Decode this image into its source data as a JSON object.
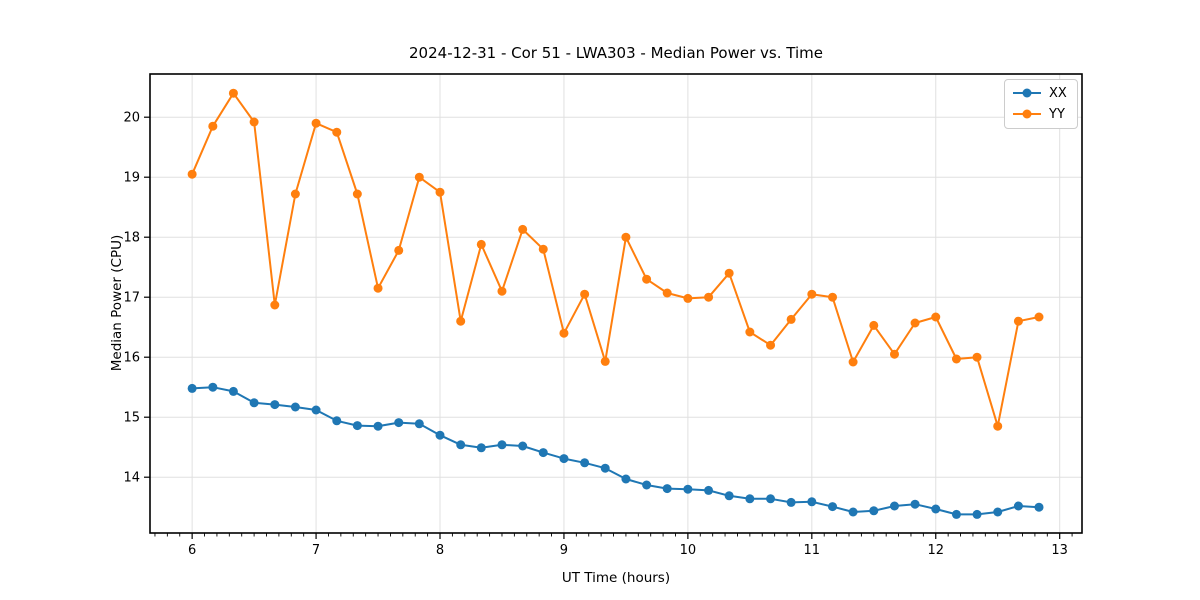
{
  "chart_data": {
    "type": "line",
    "title": "2024-12-31 - Cor 51 - LWA303 - Median Power vs. Time",
    "xlabel": "UT Time (hours)",
    "ylabel": "Median Power (CPU)",
    "xlim": [
      5.66,
      13.18
    ],
    "ylim": [
      13.07,
      20.72
    ],
    "xticks": [
      6,
      7,
      8,
      9,
      10,
      11,
      12,
      13
    ],
    "yticks": [
      14,
      15,
      16,
      17,
      18,
      19,
      20
    ],
    "x_minor_tick_step": 0.1,
    "grid": true,
    "legend_position": "upper right",
    "x": [
      6.0,
      6.167,
      6.333,
      6.5,
      6.667,
      6.833,
      7.0,
      7.167,
      7.333,
      7.5,
      7.667,
      7.833,
      8.0,
      8.167,
      8.333,
      8.5,
      8.667,
      8.833,
      9.0,
      9.167,
      9.333,
      9.5,
      9.667,
      9.833,
      10.0,
      10.167,
      10.333,
      10.5,
      10.667,
      10.833,
      11.0,
      11.167,
      11.333,
      11.5,
      11.667,
      11.833,
      12.0,
      12.167,
      12.333,
      12.5,
      12.667,
      12.833
    ],
    "series": [
      {
        "name": "XX",
        "color": "#1f77b4",
        "values": [
          15.48,
          15.5,
          15.43,
          15.24,
          15.21,
          15.17,
          15.12,
          14.94,
          14.86,
          14.85,
          14.91,
          14.89,
          14.7,
          14.54,
          14.49,
          14.54,
          14.52,
          14.41,
          14.31,
          14.24,
          14.15,
          13.97,
          13.87,
          13.81,
          13.8,
          13.78,
          13.69,
          13.64,
          13.64,
          13.58,
          13.59,
          13.51,
          13.42,
          13.44,
          13.52,
          13.55,
          13.47,
          13.38,
          13.38,
          13.42,
          13.52,
          13.5
        ]
      },
      {
        "name": "YY",
        "color": "#ff7f0e",
        "values": [
          19.05,
          19.85,
          20.4,
          19.92,
          16.87,
          18.72,
          19.9,
          19.75,
          18.72,
          17.15,
          17.78,
          19.0,
          18.75,
          16.6,
          17.88,
          17.1,
          18.13,
          17.8,
          16.4,
          17.05,
          15.93,
          18.0,
          17.3,
          17.07,
          16.98,
          17.0,
          17.4,
          16.42,
          16.2,
          16.63,
          17.05,
          17.0,
          15.92,
          16.53,
          16.05,
          16.57,
          16.67,
          15.97,
          16.0,
          14.85,
          16.6,
          16.67
        ]
      }
    ]
  },
  "colors": {
    "background": "#ffffff",
    "grid": "#e0e0e0",
    "spine": "#000000",
    "tick": "#000000",
    "text": "#000000",
    "legend_border": "#cccccc"
  }
}
